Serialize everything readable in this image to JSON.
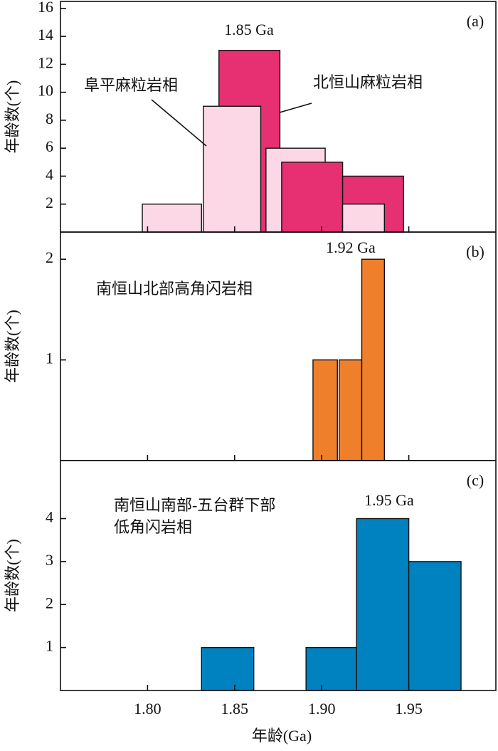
{
  "chart_data": [
    {
      "type": "histogram",
      "panel_label": "(a)",
      "ylabel": "年龄数(个)",
      "xlim": [
        1.75,
        2.0
      ],
      "ylim": [
        0,
        16.5
      ],
      "yticks": [
        2,
        4,
        6,
        8,
        10,
        12,
        14,
        16
      ],
      "annotations": [
        {
          "text": "1.85 Ga"
        }
      ],
      "series": [
        {
          "name": "阜平麻粒岩相",
          "color": "#fcd7e6",
          "x0": [
            1.797,
            1.832,
            1.868,
            1.912
          ],
          "x1": [
            1.831,
            1.865,
            1.902,
            1.936
          ],
          "values": [
            2,
            9,
            6,
            2
          ]
        },
        {
          "name": "北恒山麻粒岩相",
          "color": "#e63071",
          "x0": [
            1.841,
            1.877,
            1.912
          ],
          "x1": [
            1.876,
            1.912,
            1.947
          ],
          "values": [
            13,
            5,
            4
          ]
        }
      ]
    },
    {
      "type": "histogram",
      "panel_label": "(b)",
      "ylabel": "年龄数(个)",
      "xlim": [
        1.75,
        2.0
      ],
      "ylim": [
        0,
        2.27
      ],
      "yticks": [
        1,
        2
      ],
      "annotations": [
        {
          "text": "1.92 Ga"
        },
        {
          "text": "南恒山北部高角闪岩相"
        }
      ],
      "series": [
        {
          "color": "#f07f2c",
          "x0": [
            1.895,
            1.91,
            1.923
          ],
          "x1": [
            1.909,
            1.923,
            1.936
          ],
          "values": [
            1,
            1,
            2
          ]
        }
      ]
    },
    {
      "type": "histogram",
      "panel_label": "(c)",
      "ylabel": "年龄数(个)",
      "xlabel": "年龄(Ga)",
      "xlim": [
        1.75,
        2.0
      ],
      "ylim": [
        0,
        5.35
      ],
      "yticks": [
        1,
        2,
        3,
        4
      ],
      "xticks": [
        {
          "value": 1.8,
          "label": "1.80"
        },
        {
          "value": 1.85,
          "label": "1.85"
        },
        {
          "value": 1.9,
          "label": "1.90"
        },
        {
          "value": 1.95,
          "label": "1.95"
        }
      ],
      "annotations": [
        {
          "text": "1.95 Ga"
        },
        {
          "text": "南恒山南部-五台群下部"
        },
        {
          "text": "低角闪岩相"
        }
      ],
      "series": [
        {
          "color": "#0081c0",
          "x0": [
            1.831,
            1.891,
            1.92,
            1.95
          ],
          "x1": [
            1.861,
            1.92,
            1.95,
            1.98
          ],
          "values": [
            1,
            1,
            4,
            3
          ]
        }
      ]
    }
  ]
}
